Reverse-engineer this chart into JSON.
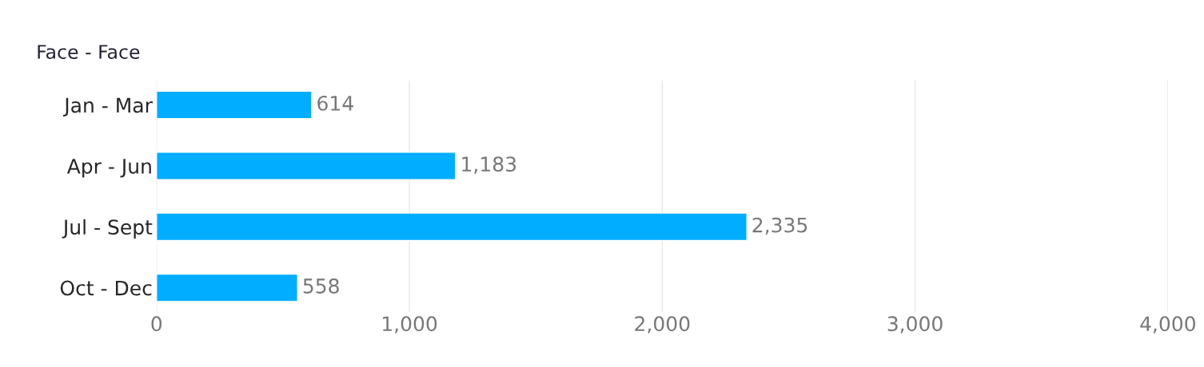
{
  "chart_data": {
    "type": "bar",
    "orientation": "horizontal",
    "title": "Face - Face",
    "categories": [
      "Jan - Mar",
      "Apr - Jun",
      "Jul - Sept",
      "Oct - Dec"
    ],
    "values": [
      614,
      1183,
      2335,
      558
    ],
    "value_labels": [
      "614",
      "1,183",
      "2,335",
      "558"
    ],
    "color": "#00adff",
    "xlim": [
      0,
      4000
    ],
    "xticks": [
      0,
      {
        "value": 1000,
        "label": "1,000"
      },
      {
        "value": 2000,
        "label": "2,000"
      },
      {
        "value": 3000,
        "label": "3,000"
      },
      {
        "value": 4000,
        "label": "4,000"
      }
    ],
    "grid": "x"
  }
}
